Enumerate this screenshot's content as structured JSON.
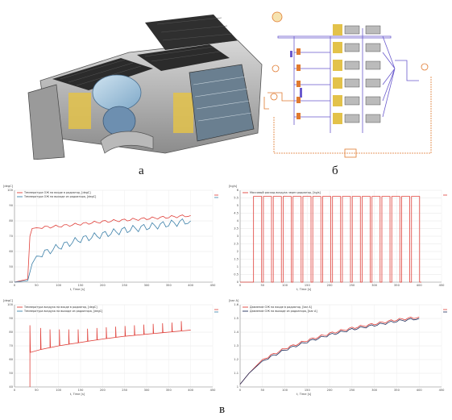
{
  "captions": {
    "a": "а",
    "b": "б",
    "c": "в"
  },
  "colors": {
    "red": "#e0403a",
    "blue": "#3a7fa8",
    "navy": "#1f2d5a",
    "purple": "#6a5acd",
    "orange": "#e07a30",
    "yellow": "#e3c24a"
  },
  "icons": [
    "machine-3d-model",
    "circuit-schematic"
  ],
  "chart_data": [
    {
      "type": "line",
      "panel": "top-left",
      "units": "[degC]",
      "xlabel": "t, Time [s]",
      "xlim": [
        0,
        450
      ],
      "ylim": [
        40,
        100
      ],
      "xticks": [
        0,
        50,
        100,
        150,
        200,
        250,
        300,
        350,
        400,
        450
      ],
      "yticks": [
        40,
        50,
        60,
        70,
        80,
        90,
        100
      ],
      "series": [
        {
          "name": "Температура ОЖ на входе в радиатор, [degC]",
          "color": "red",
          "x": [
            0,
            30,
            35,
            40,
            50,
            100,
            150,
            200,
            250,
            300,
            350,
            400
          ],
          "y": [
            40,
            42,
            70,
            75,
            75.5,
            76.5,
            78,
            79.5,
            80.5,
            81.5,
            82.5,
            83.5
          ]
        },
        {
          "name": "Температура ОЖ на выходе из радиатора, [degC]",
          "color": "blue",
          "x": [
            0,
            30,
            40,
            50,
            100,
            150,
            200,
            250,
            300,
            350,
            400
          ],
          "y": [
            40,
            41,
            52,
            57,
            63,
            68,
            71,
            74,
            76,
            78,
            80
          ]
        }
      ]
    },
    {
      "type": "line",
      "panel": "top-right",
      "units": "[kg/s]",
      "xlabel": "t, Time [s]",
      "xlim": [
        0,
        450
      ],
      "ylim": [
        0,
        6
      ],
      "xticks": [
        0,
        50,
        100,
        150,
        200,
        250,
        300,
        350,
        400,
        450
      ],
      "yticks": [
        0,
        0.5,
        1,
        1.5,
        2,
        2.5,
        3,
        3.5,
        4,
        4.5,
        5,
        5.5,
        6
      ],
      "series": [
        {
          "name": "Массовый расход воздуха через радиатор, [kg/s]",
          "color": "red",
          "pulse": {
            "start": 30,
            "end": 405,
            "count": 17,
            "high": 5.6,
            "low": 0
          }
        }
      ]
    },
    {
      "type": "line",
      "panel": "bottom-left",
      "units": "[degC]",
      "xlabel": "t, Time [s]",
      "xlim": [
        0,
        450
      ],
      "ylim": [
        40,
        100
      ],
      "xticks": [
        0,
        50,
        100,
        150,
        200,
        250,
        300,
        350,
        400,
        450
      ],
      "yticks": [
        40,
        50,
        60,
        70,
        80,
        90,
        100
      ],
      "series": [
        {
          "name": "Температура воздуха на входе в радиатор, [degC]",
          "color": "red",
          "x": [
            35,
            40,
            100,
            150,
            200,
            250,
            300,
            350,
            400
          ],
          "y": [
            65,
            66,
            70,
            72.5,
            75,
            77,
            78.5,
            80,
            81.5
          ],
          "spike_peaks": [
            85,
            83,
            82,
            82,
            82,
            82,
            82.5,
            83,
            83.5,
            84,
            84.5,
            85,
            85.5,
            86,
            86.5,
            87,
            88
          ]
        },
        {
          "name": "Температура воздуха на выходе из радиатора, [degC]",
          "color": "blue",
          "x": [],
          "y": []
        }
      ]
    },
    {
      "type": "line",
      "panel": "bottom-right",
      "units": "[bar A]",
      "xlabel": "t, Time [s]",
      "xlim": [
        0,
        450
      ],
      "ylim": [
        1,
        1.6
      ],
      "xticks": [
        0,
        50,
        100,
        150,
        200,
        250,
        300,
        350,
        400,
        450
      ],
      "yticks": [
        1,
        1.1,
        1.2,
        1.3,
        1.4,
        1.5,
        1.6
      ],
      "series": [
        {
          "name": "Давление ОЖ на входе в радиатор, [bar A]",
          "color": "red",
          "x": [
            0,
            20,
            50,
            100,
            150,
            200,
            250,
            300,
            350,
            400
          ],
          "y": [
            1.02,
            1.1,
            1.2,
            1.28,
            1.34,
            1.39,
            1.43,
            1.46,
            1.49,
            1.51
          ]
        },
        {
          "name": "Давление ОЖ на выходе из радиатора, [bar A]",
          "color": "navy",
          "x": [
            0,
            20,
            50,
            100,
            150,
            200,
            250,
            300,
            350,
            400
          ],
          "y": [
            1.02,
            1.1,
            1.19,
            1.27,
            1.33,
            1.38,
            1.42,
            1.45,
            1.48,
            1.5
          ]
        }
      ]
    }
  ]
}
